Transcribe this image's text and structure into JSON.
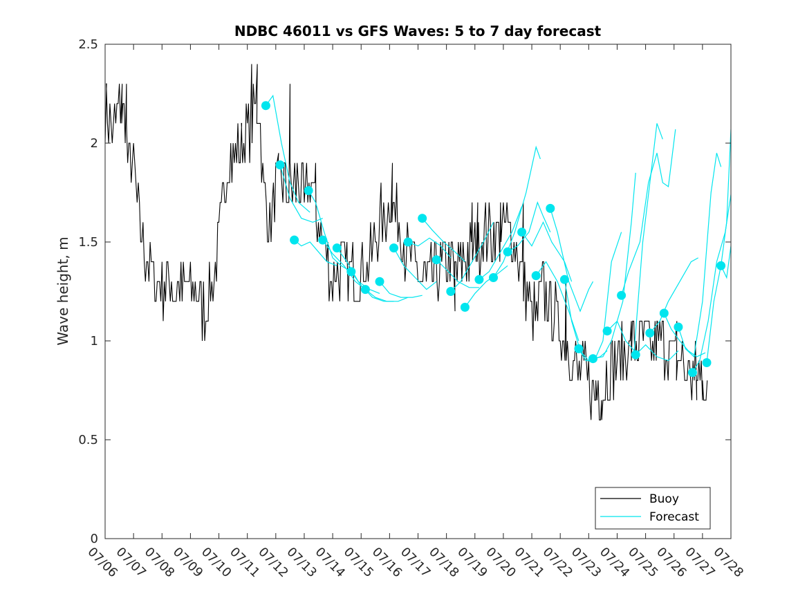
{
  "chart_data": {
    "type": "line",
    "title": "NDBC 46011 vs GFS Waves: 5 to 7 day forecast",
    "xlabel": "",
    "ylabel": "Wave height, m",
    "x_domain": [
      0,
      22
    ],
    "ylim": [
      0,
      2.5
    ],
    "x_ticks": [
      {
        "v": 0,
        "label": "07/06"
      },
      {
        "v": 1,
        "label": "07/07"
      },
      {
        "v": 2,
        "label": "07/08"
      },
      {
        "v": 3,
        "label": "07/09"
      },
      {
        "v": 4,
        "label": "07/10"
      },
      {
        "v": 5,
        "label": "07/11"
      },
      {
        "v": 6,
        "label": "07/12"
      },
      {
        "v": 7,
        "label": "07/13"
      },
      {
        "v": 8,
        "label": "07/14"
      },
      {
        "v": 9,
        "label": "07/15"
      },
      {
        "v": 10,
        "label": "07/16"
      },
      {
        "v": 11,
        "label": "07/17"
      },
      {
        "v": 12,
        "label": "07/18"
      },
      {
        "v": 13,
        "label": "07/19"
      },
      {
        "v": 14,
        "label": "07/20"
      },
      {
        "v": 15,
        "label": "07/21"
      },
      {
        "v": 16,
        "label": "07/22"
      },
      {
        "v": 17,
        "label": "07/23"
      },
      {
        "v": 18,
        "label": "07/24"
      },
      {
        "v": 19,
        "label": "07/25"
      },
      {
        "v": 20,
        "label": "07/26"
      },
      {
        "v": 21,
        "label": "07/27"
      },
      {
        "v": 22,
        "label": "07/28"
      }
    ],
    "y_ticks": [
      {
        "v": 0,
        "label": "0"
      },
      {
        "v": 0.5,
        "label": "0.5"
      },
      {
        "v": 1,
        "label": "1"
      },
      {
        "v": 1.5,
        "label": "1.5"
      },
      {
        "v": 2,
        "label": "2"
      },
      {
        "v": 2.5,
        "label": "2.5"
      }
    ],
    "grid": false,
    "legend_position": "bottom-right",
    "legend": [
      {
        "label": "Buoy",
        "color": "#000000"
      },
      {
        "label": "Forecast",
        "color": "#00e5ee"
      }
    ],
    "colors": {
      "buoy": "#000000",
      "forecast": "#00e5ee"
    },
    "buoy_anchors": [
      [
        0.0,
        2.15
      ],
      [
        0.3,
        2.05
      ],
      [
        0.5,
        2.2
      ],
      [
        0.7,
        2.15
      ],
      [
        0.8,
        1.9
      ],
      [
        1.0,
        1.9
      ],
      [
        1.2,
        1.6
      ],
      [
        1.5,
        1.4
      ],
      [
        1.8,
        1.28
      ],
      [
        2.2,
        1.3
      ],
      [
        2.6,
        1.25
      ],
      [
        3.0,
        1.28
      ],
      [
        3.3,
        1.2
      ],
      [
        3.5,
        1.15
      ],
      [
        3.8,
        1.3
      ],
      [
        4.0,
        1.5
      ],
      [
        4.3,
        1.9
      ],
      [
        4.6,
        1.95
      ],
      [
        5.0,
        2.05
      ],
      [
        5.2,
        2.15
      ],
      [
        5.4,
        2.2
      ],
      [
        5.6,
        1.7
      ],
      [
        5.8,
        1.6
      ],
      [
        6.0,
        1.75
      ],
      [
        6.2,
        1.8
      ],
      [
        6.5,
        1.75
      ],
      [
        6.8,
        1.8
      ],
      [
        7.0,
        1.7
      ],
      [
        7.2,
        1.8
      ],
      [
        7.5,
        1.6
      ],
      [
        7.8,
        1.4
      ],
      [
        8.0,
        1.3
      ],
      [
        8.3,
        1.4
      ],
      [
        8.6,
        1.35
      ],
      [
        8.8,
        1.3
      ],
      [
        9.0,
        1.35
      ],
      [
        9.3,
        1.4
      ],
      [
        9.5,
        1.5
      ],
      [
        9.8,
        1.6
      ],
      [
        10.0,
        1.7
      ],
      [
        10.3,
        1.6
      ],
      [
        10.6,
        1.45
      ],
      [
        10.8,
        1.4
      ],
      [
        11.0,
        1.35
      ],
      [
        11.3,
        1.3
      ],
      [
        11.6,
        1.35
      ],
      [
        12.0,
        1.4
      ],
      [
        12.3,
        1.35
      ],
      [
        12.6,
        1.4
      ],
      [
        12.9,
        1.45
      ],
      [
        13.2,
        1.5
      ],
      [
        13.5,
        1.55
      ],
      [
        13.8,
        1.55
      ],
      [
        14.1,
        1.6
      ],
      [
        14.4,
        1.5
      ],
      [
        14.7,
        1.3
      ],
      [
        15.0,
        1.15
      ],
      [
        15.2,
        1.1
      ],
      [
        15.4,
        1.25
      ],
      [
        15.8,
        1.15
      ],
      [
        16.0,
        1.05
      ],
      [
        16.3,
        0.95
      ],
      [
        16.6,
        0.85
      ],
      [
        16.9,
        0.8
      ],
      [
        17.2,
        0.75
      ],
      [
        17.5,
        0.78
      ],
      [
        17.8,
        0.85
      ],
      [
        18.0,
        0.9
      ],
      [
        18.3,
        0.95
      ],
      [
        18.6,
        0.98
      ],
      [
        18.9,
        1.0
      ],
      [
        19.2,
        0.95
      ],
      [
        19.5,
        1.0
      ],
      [
        19.8,
        0.95
      ],
      [
        20.1,
        0.92
      ],
      [
        20.4,
        0.85
      ],
      [
        20.7,
        0.82
      ],
      [
        21.0,
        0.82
      ],
      [
        21.2,
        0.82
      ]
    ],
    "buoy_spikes": [
      [
        0.05,
        2.3
      ],
      [
        0.6,
        2.3
      ],
      [
        0.75,
        2.3
      ],
      [
        4.8,
        2.1
      ],
      [
        5.15,
        2.4
      ],
      [
        5.35,
        2.4
      ],
      [
        6.1,
        1.95
      ],
      [
        6.5,
        2.3
      ],
      [
        6.95,
        1.9
      ],
      [
        7.4,
        1.9
      ],
      [
        9.7,
        1.8
      ],
      [
        10.1,
        1.9
      ],
      [
        12.3,
        1.15
      ],
      [
        12.9,
        1.7
      ],
      [
        13.1,
        1.7
      ],
      [
        13.9,
        1.7
      ],
      [
        14.7,
        1.7
      ],
      [
        16.2,
        1.3
      ],
      [
        17.25,
        0.7
      ],
      [
        17.45,
        0.7
      ],
      [
        18.5,
        1.1
      ],
      [
        19.4,
        1.1
      ],
      [
        20.1,
        1.1
      ],
      [
        20.8,
        0.7
      ],
      [
        21.0,
        0.7
      ]
    ],
    "forecast_points": [
      [
        5.65,
        2.19
      ],
      [
        6.15,
        1.89
      ],
      [
        6.65,
        1.51
      ],
      [
        7.15,
        1.76
      ],
      [
        7.65,
        1.51
      ],
      [
        8.15,
        1.47
      ],
      [
        8.65,
        1.35
      ],
      [
        9.15,
        1.26
      ],
      [
        9.65,
        1.3
      ],
      [
        10.15,
        1.47
      ],
      [
        10.65,
        1.5
      ],
      [
        11.15,
        1.62
      ],
      [
        11.65,
        1.41
      ],
      [
        12.15,
        1.25
      ],
      [
        12.65,
        1.17
      ],
      [
        13.15,
        1.31
      ],
      [
        13.65,
        1.32
      ],
      [
        14.15,
        1.45
      ],
      [
        14.65,
        1.55
      ],
      [
        15.15,
        1.33
      ],
      [
        15.65,
        1.67
      ],
      [
        16.15,
        1.31
      ],
      [
        16.65,
        0.96
      ],
      [
        17.15,
        0.91
      ],
      [
        17.65,
        1.05
      ],
      [
        18.15,
        1.23
      ],
      [
        18.65,
        0.93
      ],
      [
        19.15,
        1.04
      ],
      [
        19.65,
        1.14
      ],
      [
        20.15,
        1.07
      ],
      [
        20.65,
        0.84
      ],
      [
        21.15,
        0.89
      ],
      [
        21.65,
        1.38
      ]
    ],
    "forecast_traces": [
      [
        [
          5.65,
          2.19
        ],
        [
          5.9,
          2.24
        ],
        [
          6.2,
          2.0
        ],
        [
          6.5,
          1.8
        ],
        [
          6.8,
          1.7
        ],
        [
          7.2,
          1.65
        ]
      ],
      [
        [
          6.15,
          1.89
        ],
        [
          6.5,
          1.72
        ],
        [
          6.9,
          1.62
        ],
        [
          7.3,
          1.6
        ],
        [
          7.65,
          1.62
        ]
      ],
      [
        [
          6.65,
          1.51
        ],
        [
          6.9,
          1.48
        ],
        [
          7.2,
          1.5
        ],
        [
          7.5,
          1.45
        ],
        [
          7.8,
          1.4
        ],
        [
          8.15,
          1.38
        ]
      ],
      [
        [
          7.15,
          1.76
        ],
        [
          7.4,
          1.7
        ],
        [
          7.7,
          1.55
        ],
        [
          8.0,
          1.42
        ],
        [
          8.3,
          1.38
        ],
        [
          8.65,
          1.35
        ]
      ],
      [
        [
          7.65,
          1.51
        ],
        [
          8.0,
          1.44
        ],
        [
          8.4,
          1.38
        ],
        [
          8.8,
          1.3
        ],
        [
          9.15,
          1.26
        ]
      ],
      [
        [
          8.15,
          1.47
        ],
        [
          8.5,
          1.4
        ],
        [
          8.9,
          1.3
        ],
        [
          9.3,
          1.26
        ],
        [
          9.65,
          1.24
        ]
      ],
      [
        [
          8.65,
          1.35
        ],
        [
          9.0,
          1.28
        ],
        [
          9.4,
          1.22
        ],
        [
          9.8,
          1.2
        ],
        [
          10.15,
          1.2
        ]
      ],
      [
        [
          9.15,
          1.26
        ],
        [
          9.5,
          1.22
        ],
        [
          9.9,
          1.2
        ],
        [
          10.3,
          1.2
        ],
        [
          10.65,
          1.22
        ]
      ],
      [
        [
          9.65,
          1.3
        ],
        [
          10.0,
          1.24
        ],
        [
          10.4,
          1.22
        ],
        [
          10.8,
          1.22
        ],
        [
          11.15,
          1.23
        ]
      ],
      [
        [
          10.15,
          1.47
        ],
        [
          10.5,
          1.38
        ],
        [
          10.9,
          1.32
        ],
        [
          11.3,
          1.26
        ],
        [
          11.65,
          1.3
        ]
      ],
      [
        [
          10.65,
          1.5
        ],
        [
          11.0,
          1.48
        ],
        [
          11.4,
          1.52
        ],
        [
          11.8,
          1.48
        ],
        [
          12.15,
          1.42
        ]
      ],
      [
        [
          11.15,
          1.62
        ],
        [
          11.5,
          1.56
        ],
        [
          11.9,
          1.5
        ],
        [
          12.3,
          1.45
        ],
        [
          12.65,
          1.4
        ]
      ],
      [
        [
          11.65,
          1.41
        ],
        [
          12.0,
          1.36
        ],
        [
          12.4,
          1.3
        ],
        [
          12.8,
          1.27
        ],
        [
          13.15,
          1.27
        ]
      ],
      [
        [
          12.15,
          1.25
        ],
        [
          12.5,
          1.3
        ],
        [
          12.9,
          1.4
        ],
        [
          13.3,
          1.5
        ],
        [
          13.65,
          1.6
        ]
      ],
      [
        [
          12.65,
          1.17
        ],
        [
          13.0,
          1.24
        ],
        [
          13.4,
          1.3
        ],
        [
          13.8,
          1.34
        ],
        [
          14.15,
          1.38
        ]
      ],
      [
        [
          13.15,
          1.31
        ],
        [
          13.5,
          1.35
        ],
        [
          13.9,
          1.45
        ],
        [
          14.3,
          1.55
        ],
        [
          14.65,
          1.68
        ]
      ],
      [
        [
          13.65,
          1.32
        ],
        [
          14.0,
          1.4
        ],
        [
          14.4,
          1.55
        ],
        [
          14.8,
          1.75
        ],
        [
          15.15,
          1.98
        ],
        [
          15.3,
          1.92
        ]
      ],
      [
        [
          14.15,
          1.45
        ],
        [
          14.5,
          1.48
        ],
        [
          14.9,
          1.55
        ],
        [
          15.2,
          1.7
        ],
        [
          15.4,
          1.63
        ],
        [
          15.65,
          1.55
        ]
      ],
      [
        [
          14.65,
          1.55
        ],
        [
          15.0,
          1.48
        ],
        [
          15.4,
          1.6
        ],
        [
          15.7,
          1.5
        ],
        [
          16.15,
          1.4
        ],
        [
          16.4,
          1.3
        ]
      ],
      [
        [
          15.15,
          1.33
        ],
        [
          15.5,
          1.4
        ],
        [
          15.9,
          1.3
        ],
        [
          16.3,
          1.15
        ],
        [
          16.65,
          1.0
        ]
      ],
      [
        [
          15.65,
          1.67
        ],
        [
          15.9,
          1.55
        ],
        [
          16.3,
          1.3
        ],
        [
          16.7,
          1.15
        ],
        [
          17.0,
          1.26
        ],
        [
          17.15,
          1.3
        ]
      ],
      [
        [
          16.15,
          1.31
        ],
        [
          16.4,
          1.1
        ],
        [
          16.7,
          0.95
        ],
        [
          17.0,
          0.9
        ],
        [
          17.4,
          0.92
        ],
        [
          17.65,
          0.95
        ]
      ],
      [
        [
          16.65,
          0.96
        ],
        [
          16.9,
          0.9
        ],
        [
          17.2,
          0.9
        ],
        [
          17.5,
          1.0
        ],
        [
          17.8,
          1.4
        ],
        [
          18.15,
          1.55
        ]
      ],
      [
        [
          17.15,
          0.91
        ],
        [
          17.5,
          0.92
        ],
        [
          17.8,
          1.0
        ],
        [
          18.2,
          1.2
        ],
        [
          18.5,
          1.6
        ],
        [
          18.65,
          1.85
        ]
      ],
      [
        [
          17.65,
          1.05
        ],
        [
          18.0,
          1.1
        ],
        [
          18.3,
          1.0
        ],
        [
          18.6,
          0.95
        ],
        [
          18.9,
          1.5
        ],
        [
          19.15,
          1.8
        ],
        [
          19.4,
          2.1
        ],
        [
          19.6,
          2.02
        ]
      ],
      [
        [
          18.15,
          1.23
        ],
        [
          18.4,
          1.35
        ],
        [
          18.8,
          1.5
        ],
        [
          19.1,
          1.8
        ],
        [
          19.4,
          1.95
        ],
        [
          19.6,
          1.8
        ],
        [
          19.8,
          1.78
        ],
        [
          20.05,
          2.07
        ]
      ],
      [
        [
          18.65,
          0.93
        ],
        [
          19.0,
          0.98
        ],
        [
          19.4,
          0.92
        ],
        [
          19.8,
          0.9
        ],
        [
          20.15,
          0.95
        ]
      ],
      [
        [
          19.15,
          1.04
        ],
        [
          19.5,
          1.1
        ],
        [
          19.8,
          1.2
        ],
        [
          20.2,
          1.3
        ],
        [
          20.6,
          1.4
        ],
        [
          20.85,
          1.42
        ]
      ],
      [
        [
          19.65,
          1.14
        ],
        [
          19.9,
          1.06
        ],
        [
          20.2,
          1.0
        ],
        [
          20.5,
          0.95
        ],
        [
          20.8,
          0.92
        ],
        [
          21.1,
          0.94
        ]
      ],
      [
        [
          20.15,
          1.07
        ],
        [
          20.4,
          0.96
        ],
        [
          20.7,
          0.92
        ],
        [
          21.0,
          1.2
        ],
        [
          21.3,
          1.75
        ],
        [
          21.5,
          1.95
        ],
        [
          21.65,
          1.88
        ]
      ],
      [
        [
          20.65,
          0.84
        ],
        [
          20.9,
          0.9
        ],
        [
          21.2,
          1.1
        ],
        [
          21.5,
          1.4
        ],
        [
          21.8,
          1.55
        ],
        [
          22.0,
          1.74
        ]
      ],
      [
        [
          21.15,
          0.89
        ],
        [
          21.4,
          1.2
        ],
        [
          21.65,
          1.38
        ],
        [
          21.85,
          1.32
        ],
        [
          22.0,
          1.48
        ]
      ],
      [
        [
          21.65,
          1.38
        ],
        [
          21.85,
          1.6
        ],
        [
          22.0,
          2.07
        ]
      ]
    ]
  }
}
